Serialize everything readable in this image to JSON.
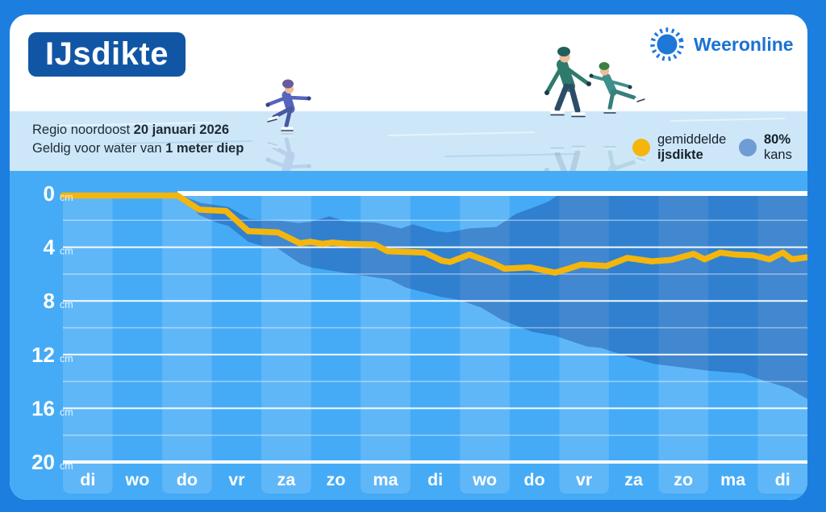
{
  "header": {
    "title": "IJsdikte",
    "brand": "Weeronline",
    "info_line1_regular": "Regio noordoost ",
    "info_line1_bold": "20 januari 2026",
    "info_line2_regular": "Geldig voor water van ",
    "info_line2_bold": "1 meter diep"
  },
  "legend": {
    "avg_label_line1": "gemiddelde",
    "avg_label_line2": "ijsdikte",
    "prob_label_line1": "80%",
    "prob_label_line2": "kans"
  },
  "colors": {
    "border_blue": "#1c7fdf",
    "card_white": "#ffffff",
    "title_box_blue": "#1156a4",
    "brand_blue": "#1a72d3",
    "ice_light_blue": "#cde7f8",
    "chart_bg_blue": "#45abf6",
    "chart_column_light": "#60b7f8",
    "band_overlay": "rgba(9,50,135,0.35)",
    "line_yellow": "#f4b60d",
    "legend_prob_dot": "#6f9cd4",
    "grid_white": "#ffffff",
    "text_dark": "#1d2a35"
  },
  "chart_data": {
    "type": "line",
    "title": "IJsdikte",
    "subtitle": "Regio noordoost 20 januari 2026, geldig voor water van 1 meter diep",
    "ylabel": "cm",
    "y_unit": "cm",
    "y_ticks": [
      0,
      4,
      8,
      12,
      16,
      20
    ],
    "y_minor_step": 2,
    "ylim": [
      0,
      20
    ],
    "y_inverted": true,
    "grid": true,
    "legend_position": "top-right",
    "x_categories": [
      "di",
      "wo",
      "do",
      "vr",
      "za",
      "zo",
      "ma",
      "di",
      "wo",
      "do",
      "vr",
      "za",
      "zo",
      "ma",
      "di"
    ],
    "series": [
      {
        "name": "gemiddelde ijsdikte",
        "type": "line",
        "color": "#f4b60d",
        "points_note": "pairs of [fraction of x-axis 0..1, ice thickness in cm]",
        "points": [
          [
            0.0,
            0.15
          ],
          [
            0.154,
            0.15
          ],
          [
            0.183,
            1.2
          ],
          [
            0.219,
            1.3
          ],
          [
            0.249,
            2.8
          ],
          [
            0.289,
            2.9
          ],
          [
            0.318,
            3.7
          ],
          [
            0.333,
            3.6
          ],
          [
            0.349,
            3.75
          ],
          [
            0.362,
            3.65
          ],
          [
            0.381,
            3.75
          ],
          [
            0.419,
            3.8
          ],
          [
            0.436,
            4.3
          ],
          [
            0.486,
            4.4
          ],
          [
            0.509,
            5.0
          ],
          [
            0.52,
            5.1
          ],
          [
            0.546,
            4.55
          ],
          [
            0.578,
            5.2
          ],
          [
            0.593,
            5.6
          ],
          [
            0.627,
            5.5
          ],
          [
            0.661,
            5.9
          ],
          [
            0.676,
            5.65
          ],
          [
            0.696,
            5.3
          ],
          [
            0.73,
            5.4
          ],
          [
            0.758,
            4.8
          ],
          [
            0.791,
            5.05
          ],
          [
            0.817,
            4.95
          ],
          [
            0.847,
            4.5
          ],
          [
            0.862,
            4.9
          ],
          [
            0.883,
            4.4
          ],
          [
            0.904,
            4.55
          ],
          [
            0.927,
            4.6
          ],
          [
            0.949,
            4.9
          ],
          [
            0.967,
            4.4
          ],
          [
            0.979,
            4.9
          ],
          [
            1.0,
            4.75
          ]
        ]
      },
      {
        "name": "80% kans",
        "type": "band",
        "color": "rgba(9,50,135,0.35)",
        "top": [
          [
            0.157,
            0.1
          ],
          [
            0.186,
            0.7
          ],
          [
            0.222,
            1.0
          ],
          [
            0.251,
            1.9
          ],
          [
            0.289,
            2.0
          ],
          [
            0.316,
            2.2
          ],
          [
            0.333,
            2.1
          ],
          [
            0.358,
            1.7
          ],
          [
            0.381,
            2.1
          ],
          [
            0.419,
            2.15
          ],
          [
            0.454,
            2.6
          ],
          [
            0.47,
            2.3
          ],
          [
            0.501,
            2.8
          ],
          [
            0.517,
            2.9
          ],
          [
            0.546,
            2.6
          ],
          [
            0.582,
            2.5
          ],
          [
            0.609,
            1.5
          ],
          [
            0.634,
            1.0
          ],
          [
            0.652,
            0.6
          ],
          [
            0.668,
            0.0
          ],
          [
            1.0,
            0.0
          ]
        ],
        "bottom": [
          [
            0.157,
            0.1
          ],
          [
            0.183,
            1.6
          ],
          [
            0.208,
            2.2
          ],
          [
            0.222,
            2.4
          ],
          [
            0.249,
            3.6
          ],
          [
            0.273,
            4.0
          ],
          [
            0.289,
            4.1
          ],
          [
            0.318,
            5.2
          ],
          [
            0.333,
            5.5
          ],
          [
            0.389,
            6.0
          ],
          [
            0.439,
            6.4
          ],
          [
            0.46,
            7.0
          ],
          [
            0.508,
            7.7
          ],
          [
            0.53,
            7.9
          ],
          [
            0.562,
            8.5
          ],
          [
            0.589,
            9.4
          ],
          [
            0.63,
            10.3
          ],
          [
            0.661,
            10.6
          ],
          [
            0.704,
            11.4
          ],
          [
            0.723,
            11.5
          ],
          [
            0.761,
            12.2
          ],
          [
            0.795,
            12.7
          ],
          [
            0.867,
            13.2
          ],
          [
            0.914,
            13.4
          ],
          [
            0.939,
            13.9
          ],
          [
            0.975,
            14.5
          ],
          [
            0.99,
            15.0
          ],
          [
            1.0,
            15.3
          ]
        ]
      }
    ]
  }
}
